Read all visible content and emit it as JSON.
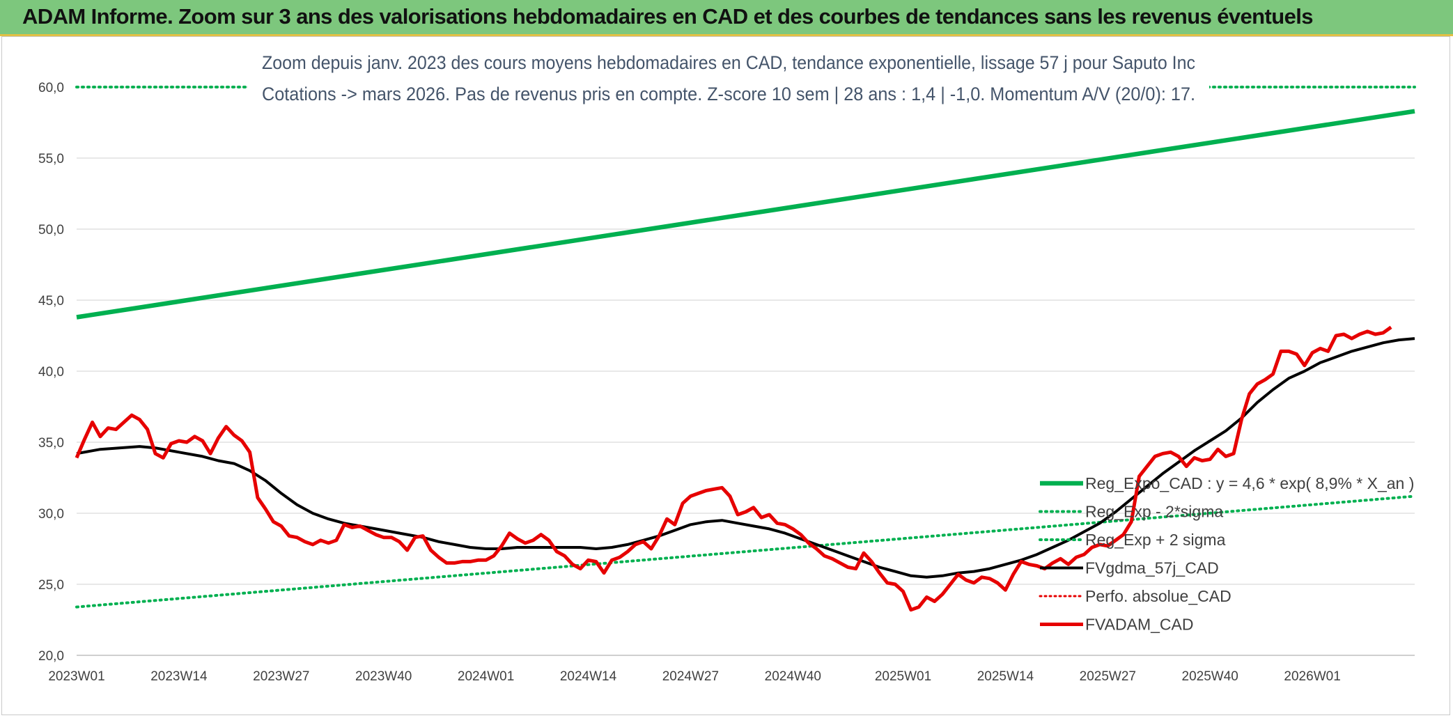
{
  "banner": {
    "title": "ADAM Informe. Zoom sur 3 ans des valorisations hebdomadaires en CAD et des courbes de tendances sans les revenus éventuels"
  },
  "colors": {
    "trend": "#00b050",
    "price": "#e60000",
    "smooth": "#000000",
    "banner": "#7dc77d"
  },
  "chart_data": {
    "type": "line",
    "subtitle_lines": [
      "Zoom depuis janv. 2023 des cours moyens hebdomadaires en CAD, tendance exponentielle, lissage 57 j pour Saputo Inc",
      "Cotations -> mars 2026. Pas de revenus pris en compte. Z-score 10 sem | 28 ans : 1,4 | -1,0. Momentum A/V (20/0): 17."
    ],
    "ylim": [
      20,
      60
    ],
    "yticks": [
      "20,0",
      "25,0",
      "30,0",
      "35,0",
      "40,0",
      "45,0",
      "50,0",
      "55,0",
      "60,0"
    ],
    "ytick_values": [
      20,
      25,
      30,
      35,
      40,
      45,
      50,
      55,
      60
    ],
    "x_count": 171,
    "xticks": [
      {
        "i": 0,
        "label": "2023W01"
      },
      {
        "i": 13,
        "label": "2023W14"
      },
      {
        "i": 26,
        "label": "2023W27"
      },
      {
        "i": 39,
        "label": "2023W40"
      },
      {
        "i": 52,
        "label": "2024W01"
      },
      {
        "i": 65,
        "label": "2024W14"
      },
      {
        "i": 78,
        "label": "2024W27"
      },
      {
        "i": 91,
        "label": "2024W40"
      },
      {
        "i": 105,
        "label": "2025W01"
      },
      {
        "i": 118,
        "label": "2025W14"
      },
      {
        "i": 131,
        "label": "2025W27"
      },
      {
        "i": 144,
        "label": "2025W40"
      },
      {
        "i": 157,
        "label": "2026W01"
      }
    ],
    "legend": [
      {
        "key": "reg_expo",
        "label": "Reg_Expo_CAD : y = 4,6 * exp( 8,9% *  X_an )",
        "style": "thick-green"
      },
      {
        "key": "reg_minus",
        "label": "Reg_Exp - 2*sigma",
        "style": "dotted-green"
      },
      {
        "key": "reg_plus",
        "label": "Reg_Exp + 2 sigma",
        "style": "dotted-green"
      },
      {
        "key": "gdma",
        "label": "FVgdma_57j_CAD",
        "style": "solid-black"
      },
      {
        "key": "perfo",
        "label": "Perfo. absolue_CAD",
        "style": "dotted-red"
      },
      {
        "key": "adam",
        "label": "FVADAM_CAD",
        "style": "thick-red"
      }
    ],
    "series": [
      {
        "name": "Reg_Expo_CAD",
        "points": [
          [
            0,
            43.8
          ],
          [
            170,
            58.3
          ]
        ]
      },
      {
        "name": "Reg_Exp - 2*sigma",
        "points": [
          [
            0,
            23.4
          ],
          [
            170,
            31.2
          ]
        ]
      },
      {
        "name": "Reg_Exp + 2 sigma",
        "points": [
          [
            0,
            60.0
          ],
          [
            170,
            60.0
          ]
        ]
      },
      {
        "name": "FVgdma_57j_CAD",
        "points": [
          [
            0,
            34.2
          ],
          [
            3,
            34.5
          ],
          [
            8,
            34.7
          ],
          [
            10,
            34.6
          ],
          [
            13,
            34.3
          ],
          [
            16,
            34.0
          ],
          [
            18,
            33.7
          ],
          [
            20,
            33.5
          ],
          [
            22,
            33.0
          ],
          [
            24,
            32.3
          ],
          [
            26,
            31.4
          ],
          [
            28,
            30.6
          ],
          [
            30,
            30.0
          ],
          [
            32,
            29.6
          ],
          [
            34,
            29.3
          ],
          [
            36,
            29.1
          ],
          [
            38,
            28.9
          ],
          [
            40,
            28.7
          ],
          [
            42,
            28.5
          ],
          [
            44,
            28.3
          ],
          [
            46,
            28.0
          ],
          [
            48,
            27.8
          ],
          [
            50,
            27.6
          ],
          [
            52,
            27.5
          ],
          [
            54,
            27.5
          ],
          [
            56,
            27.6
          ],
          [
            58,
            27.6
          ],
          [
            60,
            27.6
          ],
          [
            62,
            27.6
          ],
          [
            64,
            27.6
          ],
          [
            66,
            27.5
          ],
          [
            68,
            27.6
          ],
          [
            70,
            27.8
          ],
          [
            72,
            28.1
          ],
          [
            74,
            28.4
          ],
          [
            76,
            28.8
          ],
          [
            78,
            29.2
          ],
          [
            80,
            29.4
          ],
          [
            82,
            29.5
          ],
          [
            84,
            29.3
          ],
          [
            86,
            29.1
          ],
          [
            88,
            28.9
          ],
          [
            90,
            28.6
          ],
          [
            92,
            28.2
          ],
          [
            94,
            27.8
          ],
          [
            96,
            27.4
          ],
          [
            98,
            27.0
          ],
          [
            100,
            26.6
          ],
          [
            102,
            26.2
          ],
          [
            104,
            25.9
          ],
          [
            106,
            25.6
          ],
          [
            108,
            25.5
          ],
          [
            110,
            25.6
          ],
          [
            112,
            25.8
          ],
          [
            114,
            25.9
          ],
          [
            116,
            26.1
          ],
          [
            118,
            26.4
          ],
          [
            120,
            26.7
          ],
          [
            122,
            27.1
          ],
          [
            124,
            27.6
          ],
          [
            126,
            28.1
          ],
          [
            128,
            28.7
          ],
          [
            130,
            29.3
          ],
          [
            132,
            30.1
          ],
          [
            134,
            31.0
          ],
          [
            136,
            31.9
          ],
          [
            138,
            32.8
          ],
          [
            140,
            33.6
          ],
          [
            142,
            34.4
          ],
          [
            144,
            35.1
          ],
          [
            146,
            35.8
          ],
          [
            148,
            36.7
          ],
          [
            150,
            37.8
          ],
          [
            152,
            38.7
          ],
          [
            154,
            39.5
          ],
          [
            156,
            40.0
          ],
          [
            158,
            40.6
          ],
          [
            160,
            41.0
          ],
          [
            162,
            41.4
          ],
          [
            164,
            41.7
          ],
          [
            166,
            42.0
          ],
          [
            168,
            42.2
          ],
          [
            170,
            42.3
          ]
        ]
      },
      {
        "name": "FVADAM_CAD",
        "points": [
          [
            0,
            33.9
          ],
          [
            1,
            35.2
          ],
          [
            2,
            36.4
          ],
          [
            3,
            35.4
          ],
          [
            4,
            36.0
          ],
          [
            5,
            35.9
          ],
          [
            6,
            36.4
          ],
          [
            7,
            36.9
          ],
          [
            8,
            36.6
          ],
          [
            9,
            35.9
          ],
          [
            10,
            34.2
          ],
          [
            11,
            33.9
          ],
          [
            12,
            34.9
          ],
          [
            13,
            35.1
          ],
          [
            14,
            35.0
          ],
          [
            15,
            35.4
          ],
          [
            16,
            35.1
          ],
          [
            17,
            34.2
          ],
          [
            18,
            35.3
          ],
          [
            19,
            36.1
          ],
          [
            20,
            35.5
          ],
          [
            21,
            35.1
          ],
          [
            22,
            34.3
          ],
          [
            23,
            31.1
          ],
          [
            24,
            30.3
          ],
          [
            25,
            29.4
          ],
          [
            26,
            29.1
          ],
          [
            27,
            28.4
          ],
          [
            28,
            28.3
          ],
          [
            29,
            28.0
          ],
          [
            30,
            27.8
          ],
          [
            31,
            28.1
          ],
          [
            32,
            27.9
          ],
          [
            33,
            28.1
          ],
          [
            34,
            29.2
          ],
          [
            35,
            29.0
          ],
          [
            36,
            29.1
          ],
          [
            37,
            28.8
          ],
          [
            38,
            28.5
          ],
          [
            39,
            28.3
          ],
          [
            40,
            28.3
          ],
          [
            41,
            28.0
          ],
          [
            42,
            27.4
          ],
          [
            43,
            28.3
          ],
          [
            44,
            28.4
          ],
          [
            45,
            27.4
          ],
          [
            46,
            26.9
          ],
          [
            47,
            26.5
          ],
          [
            48,
            26.5
          ],
          [
            49,
            26.6
          ],
          [
            50,
            26.6
          ],
          [
            51,
            26.7
          ],
          [
            52,
            26.7
          ],
          [
            53,
            27.0
          ],
          [
            54,
            27.7
          ],
          [
            55,
            28.6
          ],
          [
            56,
            28.2
          ],
          [
            57,
            27.9
          ],
          [
            58,
            28.1
          ],
          [
            59,
            28.5
          ],
          [
            60,
            28.1
          ],
          [
            61,
            27.3
          ],
          [
            62,
            27.0
          ],
          [
            63,
            26.4
          ],
          [
            64,
            26.1
          ],
          [
            65,
            26.7
          ],
          [
            66,
            26.6
          ],
          [
            67,
            25.8
          ],
          [
            68,
            26.7
          ],
          [
            69,
            26.9
          ],
          [
            70,
            27.3
          ],
          [
            71,
            27.8
          ],
          [
            72,
            28.0
          ],
          [
            73,
            27.5
          ],
          [
            74,
            28.4
          ],
          [
            75,
            29.6
          ],
          [
            76,
            29.2
          ],
          [
            77,
            30.7
          ],
          [
            78,
            31.2
          ],
          [
            79,
            31.4
          ],
          [
            80,
            31.6
          ],
          [
            81,
            31.7
          ],
          [
            82,
            31.8
          ],
          [
            83,
            31.2
          ],
          [
            84,
            29.9
          ],
          [
            85,
            30.1
          ],
          [
            86,
            30.4
          ],
          [
            87,
            29.7
          ],
          [
            88,
            29.9
          ],
          [
            89,
            29.3
          ],
          [
            90,
            29.2
          ],
          [
            91,
            28.9
          ],
          [
            92,
            28.5
          ],
          [
            93,
            27.9
          ],
          [
            94,
            27.5
          ],
          [
            95,
            27.0
          ],
          [
            96,
            26.8
          ],
          [
            97,
            26.5
          ],
          [
            98,
            26.2
          ],
          [
            99,
            26.1
          ],
          [
            100,
            27.2
          ],
          [
            101,
            26.6
          ],
          [
            102,
            25.8
          ],
          [
            103,
            25.1
          ],
          [
            104,
            25.0
          ],
          [
            105,
            24.5
          ],
          [
            106,
            23.2
          ],
          [
            107,
            23.4
          ],
          [
            108,
            24.1
          ],
          [
            109,
            23.8
          ],
          [
            110,
            24.3
          ],
          [
            111,
            25.0
          ],
          [
            112,
            25.7
          ],
          [
            113,
            25.3
          ],
          [
            114,
            25.1
          ],
          [
            115,
            25.5
          ],
          [
            116,
            25.4
          ],
          [
            117,
            25.1
          ],
          [
            118,
            24.6
          ],
          [
            119,
            25.7
          ],
          [
            120,
            26.6
          ],
          [
            121,
            26.4
          ],
          [
            122,
            26.3
          ],
          [
            123,
            26.1
          ],
          [
            124,
            26.5
          ],
          [
            125,
            26.8
          ],
          [
            126,
            26.4
          ],
          [
            127,
            26.9
          ],
          [
            128,
            27.1
          ],
          [
            129,
            27.6
          ],
          [
            130,
            27.8
          ],
          [
            131,
            27.7
          ],
          [
            132,
            28.1
          ],
          [
            133,
            28.5
          ],
          [
            134,
            29.4
          ],
          [
            135,
            32.6
          ],
          [
            136,
            33.3
          ],
          [
            137,
            34.0
          ],
          [
            138,
            34.2
          ],
          [
            139,
            34.3
          ],
          [
            140,
            34.0
          ],
          [
            141,
            33.3
          ],
          [
            142,
            33.9
          ],
          [
            143,
            33.7
          ],
          [
            144,
            33.8
          ],
          [
            145,
            34.5
          ],
          [
            146,
            34.0
          ],
          [
            147,
            34.2
          ],
          [
            148,
            36.6
          ],
          [
            149,
            38.4
          ],
          [
            150,
            39.1
          ],
          [
            151,
            39.4
          ],
          [
            152,
            39.8
          ],
          [
            153,
            41.4
          ],
          [
            154,
            41.4
          ],
          [
            155,
            41.2
          ],
          [
            156,
            40.4
          ],
          [
            157,
            41.3
          ],
          [
            158,
            41.6
          ],
          [
            159,
            41.4
          ],
          [
            160,
            42.5
          ],
          [
            161,
            42.6
          ],
          [
            162,
            42.3
          ],
          [
            163,
            42.6
          ],
          [
            164,
            42.8
          ],
          [
            165,
            42.6
          ],
          [
            166,
            42.7
          ],
          [
            167,
            43.1
          ]
        ]
      }
    ]
  }
}
